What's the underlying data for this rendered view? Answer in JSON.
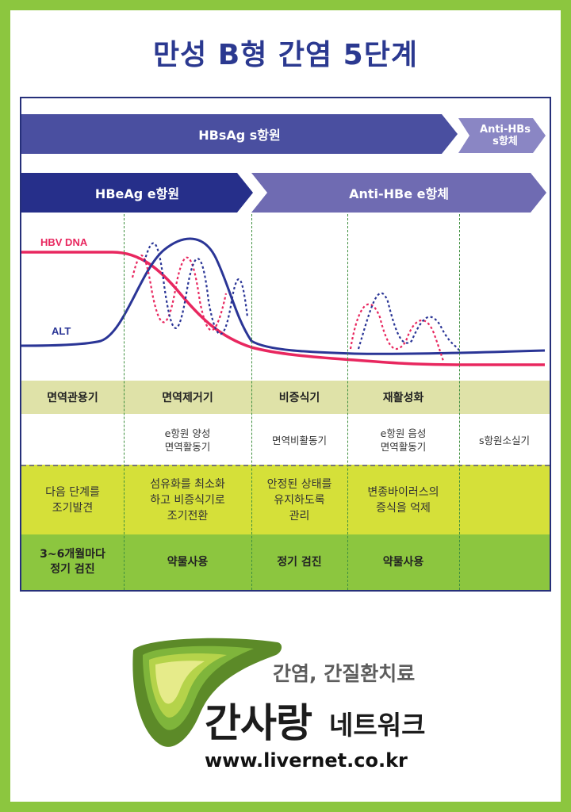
{
  "title": "만성 B형 간염 5단계",
  "antigen_bars": {
    "hbsag": "HBsAg s항원",
    "anti_hbs_line1": "Anti-HBs",
    "anti_hbs_line2": "s항체",
    "hbeag": "HBeAg e항원",
    "anti_hbe": "Anti-HBe e항체"
  },
  "chart_data": {
    "type": "line",
    "series": [
      {
        "name": "HBV DNA",
        "color": "#e8275f"
      },
      {
        "name": "ALT",
        "color": "#2a3596"
      }
    ]
  },
  "stages": [
    "면역관용기",
    "면역제거기",
    "비증식기",
    "재활성화",
    ""
  ],
  "descriptions": [
    {
      "line1": "",
      "line2": ""
    },
    {
      "line1": "e항원 양성",
      "line2": "면역활동기"
    },
    {
      "line1": "면역비활동기",
      "line2": ""
    },
    {
      "line1": "e항원 음성",
      "line2": "면역활동기"
    },
    {
      "line1": "s항원소실기",
      "line2": ""
    }
  ],
  "goals": [
    {
      "l1": "다음 단계를",
      "l2": "조기발견",
      "l3": ""
    },
    {
      "l1": "섬유화를 최소화",
      "l2": "하고 비증식기로",
      "l3": "조기전환"
    },
    {
      "l1": "안정된 상태를",
      "l2": "유지하도록",
      "l3": "관리"
    },
    {
      "l1": "변종바이러스의",
      "l2": "증식을 억제",
      "l3": ""
    },
    {
      "l1": "",
      "l2": "",
      "l3": ""
    }
  ],
  "actions": [
    {
      "l1": "3~6개월마다",
      "l2": "정기 검진"
    },
    {
      "l1": "약물사용",
      "l2": ""
    },
    {
      "l1": "정기 검진",
      "l2": ""
    },
    {
      "l1": "약물사용",
      "l2": ""
    },
    {
      "l1": "",
      "l2": ""
    }
  ],
  "footer": {
    "tagline": "간염, 간질환치료",
    "brand": "간사랑",
    "brand_suffix": "네트워크",
    "url": "www.livernet.co.kr"
  }
}
